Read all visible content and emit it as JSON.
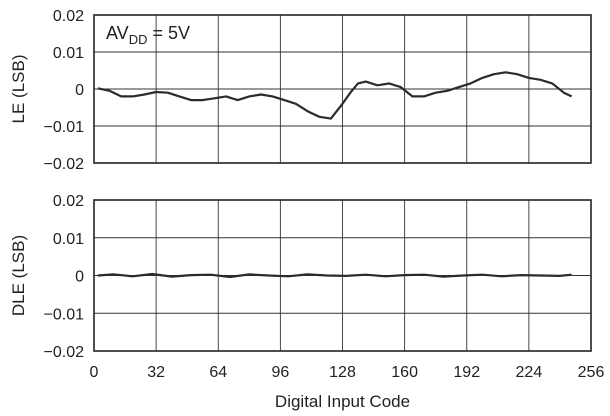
{
  "chart_data": [
    {
      "type": "line",
      "ylabel": "LE (LSB)",
      "xlabel": "",
      "annotation": {
        "main": "AV",
        "sub": "DD",
        "rest": " = 5V"
      },
      "xlim": [
        0,
        256
      ],
      "ylim": [
        -0.02,
        0.02
      ],
      "x_ticks": [
        "0",
        "32",
        "64",
        "96",
        "128",
        "160",
        "192",
        "224",
        "256"
      ],
      "y_ticks": [
        "0.02",
        "0.01",
        "0",
        "−0.01",
        "−0.02"
      ],
      "grid": true,
      "series": [
        {
          "x": [
            2,
            8,
            14,
            20,
            26,
            32,
            38,
            44,
            50,
            56,
            62,
            68,
            74,
            80,
            86,
            92,
            98,
            104,
            110,
            116,
            122,
            128,
            132,
            136,
            140,
            146,
            152,
            158,
            164,
            170,
            176,
            182,
            188,
            194,
            200,
            206,
            212,
            218,
            224,
            230,
            236,
            242,
            246
          ],
          "y": [
            0.0002,
            -0.0005,
            -0.002,
            -0.002,
            -0.0015,
            -0.0008,
            -0.001,
            -0.002,
            -0.003,
            -0.003,
            -0.0025,
            -0.002,
            -0.003,
            -0.002,
            -0.0015,
            -0.002,
            -0.003,
            -0.004,
            -0.006,
            -0.0075,
            -0.008,
            -0.004,
            -0.001,
            0.0015,
            0.002,
            0.001,
            0.0015,
            0.0005,
            -0.002,
            -0.002,
            -0.001,
            -0.0005,
            0.0005,
            0.0015,
            0.003,
            0.004,
            0.0045,
            0.004,
            0.003,
            0.0025,
            0.0015,
            -0.001,
            -0.002
          ]
        }
      ]
    },
    {
      "type": "line",
      "ylabel": "DLE (LSB)",
      "xlabel": "Digital Input Code",
      "xlim": [
        0,
        256
      ],
      "ylim": [
        -0.02,
        0.02
      ],
      "x_ticks": [
        "0",
        "32",
        "64",
        "96",
        "128",
        "160",
        "192",
        "224",
        "256"
      ],
      "y_ticks": [
        "0.02",
        "0.01",
        "0",
        "−0.01",
        "−0.02"
      ],
      "grid": true,
      "series": [
        {
          "x": [
            2,
            10,
            20,
            30,
            40,
            50,
            60,
            70,
            80,
            90,
            100,
            110,
            120,
            130,
            140,
            150,
            160,
            170,
            180,
            190,
            200,
            210,
            220,
            230,
            240,
            246
          ],
          "y": [
            0.0,
            0.0003,
            -0.0002,
            0.0004,
            -0.0003,
            0.0001,
            0.0002,
            -0.0004,
            0.0003,
            0.0,
            -0.0002,
            0.0003,
            0.0,
            -0.0001,
            0.0002,
            -0.0002,
            0.0001,
            0.0002,
            -0.0003,
            0.0,
            0.0002,
            -0.0002,
            0.0001,
            0.0,
            -0.0001,
            0.0002
          ]
        }
      ]
    }
  ]
}
